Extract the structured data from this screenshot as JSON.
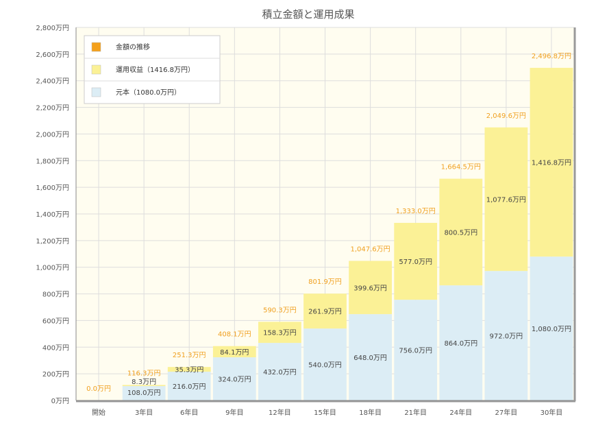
{
  "chart_data": {
    "type": "bar",
    "stacked": true,
    "title": "積立金額と運用成果",
    "categories": [
      "開始",
      "3年目",
      "6年目",
      "9年目",
      "12年目",
      "15年目",
      "18年目",
      "21年目",
      "24年目",
      "27年目",
      "30年目"
    ],
    "y_ticks": [
      "0万円",
      "200万円",
      "400万円",
      "600万円",
      "800万円",
      "1,000万円",
      "1,200万円",
      "1,400万円",
      "1,600万円",
      "1,800万円",
      "2,000万円",
      "2,200万円",
      "2,400万円",
      "2,600万円",
      "2,800万円"
    ],
    "ylim": [
      0,
      2800
    ],
    "grid": true,
    "legend_position": "top-left",
    "series": [
      {
        "name": "元本（1080.0万円）",
        "color": "#dcedf5",
        "values": [
          0,
          108.0,
          216.0,
          324.0,
          432.0,
          540.0,
          648.0,
          756.0,
          864.0,
          972.0,
          1080.0
        ],
        "labels": [
          "",
          "108.0万円",
          "216.0万円",
          "324.0万円",
          "432.0万円",
          "540.0万円",
          "648.0万円",
          "756.0万円",
          "864.0万円",
          "972.0万円",
          "1,080.0万円"
        ]
      },
      {
        "name": "運用収益（1416.8万円）",
        "color": "#fbf196",
        "values": [
          0,
          8.3,
          35.3,
          84.1,
          158.3,
          261.9,
          399.6,
          577.0,
          800.5,
          1077.6,
          1416.8
        ],
        "labels": [
          "",
          "8.3万円",
          "35.3万円",
          "84.1万円",
          "158.3万円",
          "261.9万円",
          "399.6万円",
          "577.0万円",
          "800.5万円",
          "1,077.6万円",
          "1,416.8万円"
        ]
      }
    ],
    "total_series": {
      "name": "金額の推移",
      "color": "#f4a01a",
      "values": [
        0.0,
        116.3,
        251.3,
        408.1,
        590.3,
        801.9,
        1047.6,
        1333.0,
        1664.5,
        2049.6,
        2496.8
      ],
      "labels": [
        "0.0万円",
        "116.3万円",
        "251.3万円",
        "408.1万円",
        "590.3万円",
        "801.9万円",
        "1,047.6万円",
        "1,333.0万円",
        "1,664.5万円",
        "2,049.6万円",
        "2,496.8万円"
      ]
    },
    "legend": [
      {
        "label": "金額の推移",
        "color": "#f4a01a"
      },
      {
        "label": "運用収益（1416.8万円）",
        "color": "#fbf196"
      },
      {
        "label": "元本（1080.0万円）",
        "color": "#dcedf5"
      }
    ]
  }
}
